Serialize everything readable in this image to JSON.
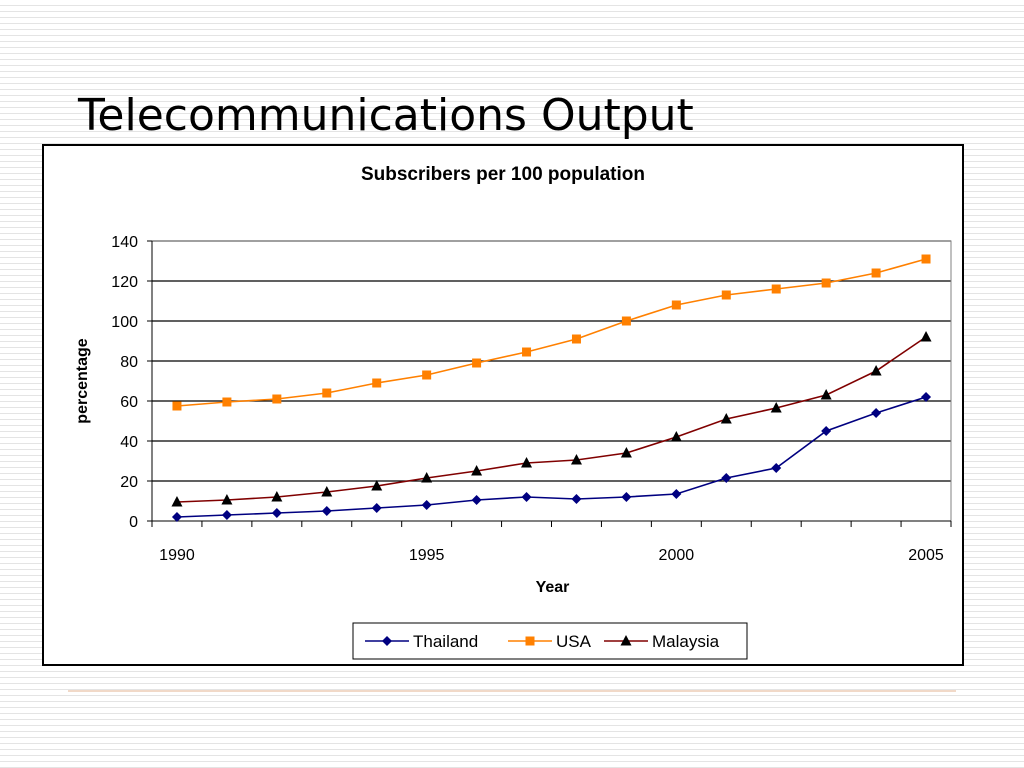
{
  "slide": {
    "title": "Telecommunications Output"
  },
  "chart_data": {
    "type": "line",
    "title": "Subscribers per 100 population",
    "xlabel": "Year",
    "ylabel": "percentage",
    "x": [
      1990,
      1991,
      1992,
      1993,
      1994,
      1995,
      1996,
      1997,
      1998,
      1999,
      2000,
      2001,
      2002,
      2003,
      2004,
      2005
    ],
    "xticks": [
      1990,
      1995,
      2000,
      2005
    ],
    "ylim": [
      0,
      140
    ],
    "yticks": [
      0,
      20,
      40,
      60,
      80,
      100,
      120,
      140
    ],
    "grid": true,
    "legend": "bottom",
    "series": [
      {
        "name": "Thailand",
        "color": "#000080",
        "marker": "diamond",
        "values": [
          2,
          3,
          4,
          5,
          6.5,
          8,
          10.5,
          12,
          11,
          12,
          13.5,
          21.5,
          26.5,
          45,
          54,
          62
        ]
      },
      {
        "name": "USA",
        "color": "#FF8000",
        "marker": "square",
        "values": [
          57.5,
          59.5,
          61,
          64,
          69,
          73,
          79,
          84.5,
          91,
          100,
          108,
          113,
          116,
          119,
          124,
          131
        ]
      },
      {
        "name": "Malaysia",
        "color": "#800000",
        "markerColor": "#000000",
        "marker": "triangle",
        "values": [
          9.5,
          10.5,
          12,
          14.5,
          17.5,
          21.5,
          25,
          29,
          30.5,
          34,
          42,
          51,
          56.5,
          63,
          75,
          92
        ]
      }
    ]
  }
}
